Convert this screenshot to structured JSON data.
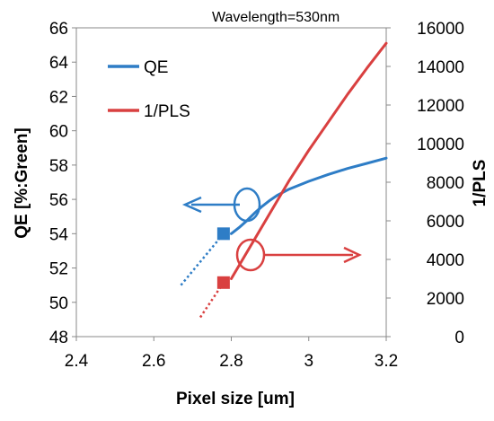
{
  "chart_data": {
    "type": "line",
    "annotation": "Wavelength=530nm",
    "xlabel": "Pixel size [um]",
    "ylabel_left": "QE [%:Green]",
    "ylabel_right": "1/PLS",
    "xlim": [
      2.4,
      3.2
    ],
    "ylim_left": [
      48,
      66
    ],
    "ylim_right": [
      0,
      16000
    ],
    "x_ticks": [
      "2.4",
      "2.6",
      "2.8",
      "3",
      "3.2"
    ],
    "y_left_ticks": [
      "48",
      "50",
      "52",
      "54",
      "56",
      "58",
      "60",
      "62",
      "64",
      "66"
    ],
    "y_right_ticks": [
      "0",
      "2000",
      "4000",
      "6000",
      "8000",
      "10000",
      "12000",
      "14000",
      "16000"
    ],
    "legend_position": "top-left",
    "series": [
      {
        "name": "QE",
        "axis": "left",
        "color": "#2E7DC6",
        "x": [
          2.8,
          2.82,
          2.84,
          2.86,
          2.88,
          2.9,
          2.92,
          2.95,
          3.0,
          3.05,
          3.1,
          3.15,
          3.2
        ],
        "y": [
          54.0,
          54.35,
          54.75,
          55.2,
          55.6,
          55.95,
          56.25,
          56.6,
          57.05,
          57.45,
          57.8,
          58.1,
          58.4
        ],
        "marker": {
          "x": 2.78,
          "y": 54.0
        },
        "extrapolation": {
          "x": [
            2.67,
            2.78
          ],
          "y": [
            51.0,
            54.0
          ]
        }
      },
      {
        "name": "1/PLS",
        "axis": "right",
        "color": "#D94040",
        "x": [
          2.8,
          2.85,
          2.9,
          2.95,
          3.0,
          3.05,
          3.1,
          3.15,
          3.2
        ],
        "y": [
          3000,
          4700,
          6400,
          8100,
          9650,
          11100,
          12550,
          13900,
          15200
        ],
        "marker": {
          "x": 2.78,
          "y": 2800
        },
        "extrapolation": {
          "x": [
            2.72,
            2.78
          ],
          "y": [
            1000,
            2800
          ]
        }
      }
    ]
  }
}
